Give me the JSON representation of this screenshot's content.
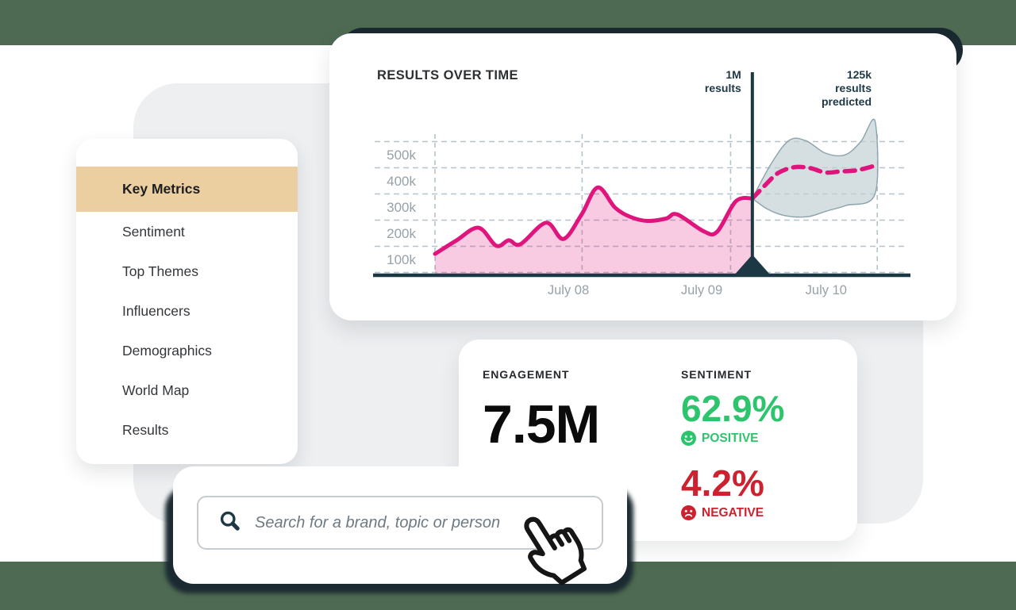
{
  "colors": {
    "page_background": "#4e6a52",
    "content_band": "#ffffff",
    "backdrop_panel": "#edeff1",
    "card_background": "#ffffff",
    "dark_navy": "#1d3845",
    "accent_pink": "#e0147d",
    "band_fill": "#c3d0d4",
    "band_stroke": "#8ba3ac",
    "gridline": "#b4c4ca",
    "axis_text": "#97a1a7",
    "highlight_tan": "#ebcfa0",
    "positive_green": "#2cc46c",
    "negative_red": "#ce2130",
    "shadow_dark": "#1b2a31"
  },
  "sidebar": {
    "items": [
      {
        "label": "Key Metrics",
        "active": true
      },
      {
        "label": "Sentiment",
        "active": false
      },
      {
        "label": "Top Themes",
        "active": false
      },
      {
        "label": "Influencers",
        "active": false
      },
      {
        "label": "Demographics",
        "active": false
      },
      {
        "label": "World Map",
        "active": false
      },
      {
        "label": "Results",
        "active": false
      }
    ]
  },
  "chart_card": {
    "title": "RESULTS OVER TIME",
    "annotation_actual": [
      "1M",
      "results"
    ],
    "annotation_predicted": [
      "125k",
      "results",
      "predicted"
    ]
  },
  "chart_data": {
    "type": "area",
    "title": "RESULTS OVER TIME",
    "unit": "results",
    "grid": true,
    "legend": "none",
    "y_ticks": [
      "500k",
      "400k",
      "300k",
      "200k",
      "100k"
    ],
    "y_tick_values": [
      500,
      400,
      300,
      200,
      100
    ],
    "ylim": [
      0,
      650
    ],
    "x_labels": [
      {
        "label": "July 08",
        "f": 0.3
      },
      {
        "label": "July 09",
        "f": 0.6
      },
      {
        "label": "July 10",
        "f": 0.88
      }
    ],
    "x_gridlines": [
      0.0,
      0.331,
      0.665,
      0.995
    ],
    "divider_f": 0.714,
    "actual": {
      "x": [
        0.0,
        0.048,
        0.098,
        0.138,
        0.166,
        0.192,
        0.25,
        0.289,
        0.33,
        0.366,
        0.405,
        0.44,
        0.478,
        0.52,
        0.545,
        0.605,
        0.635,
        0.677,
        0.714
      ],
      "y": [
        121,
        172,
        221,
        152,
        173,
        158,
        240,
        178,
        272,
        375,
        298,
        262,
        247,
        256,
        272,
        207,
        206,
        322,
        333
      ]
    },
    "predicted": {
      "x": [
        0.714,
        0.742,
        0.772,
        0.808,
        0.843,
        0.878,
        0.912,
        0.948,
        0.984
      ],
      "y": [
        333,
        382,
        430,
        452,
        449,
        432,
        436,
        440,
        455
      ]
    },
    "band_upper": {
      "x": [
        0.714,
        0.758,
        0.798,
        0.836,
        0.878,
        0.922,
        0.958,
        0.99
      ],
      "y": [
        333,
        470,
        556,
        552,
        506,
        499,
        550,
        628
      ]
    },
    "band_lower": {
      "x": [
        0.714,
        0.748,
        0.788,
        0.838,
        0.88,
        0.925,
        0.99
      ],
      "y": [
        333,
        292,
        267,
        263,
        284,
        306,
        350
      ]
    }
  },
  "metrics_card": {
    "engagement": {
      "label": "ENGAGEMENT",
      "value": "7.5M"
    },
    "sentiment": {
      "label": "SENTIMENT",
      "positive": {
        "value": "62.9%",
        "label": "POSITIVE"
      },
      "negative": {
        "value": "4.2%",
        "label": "NEGATIVE"
      }
    }
  },
  "search": {
    "placeholder": "Search for a brand, topic or person"
  }
}
